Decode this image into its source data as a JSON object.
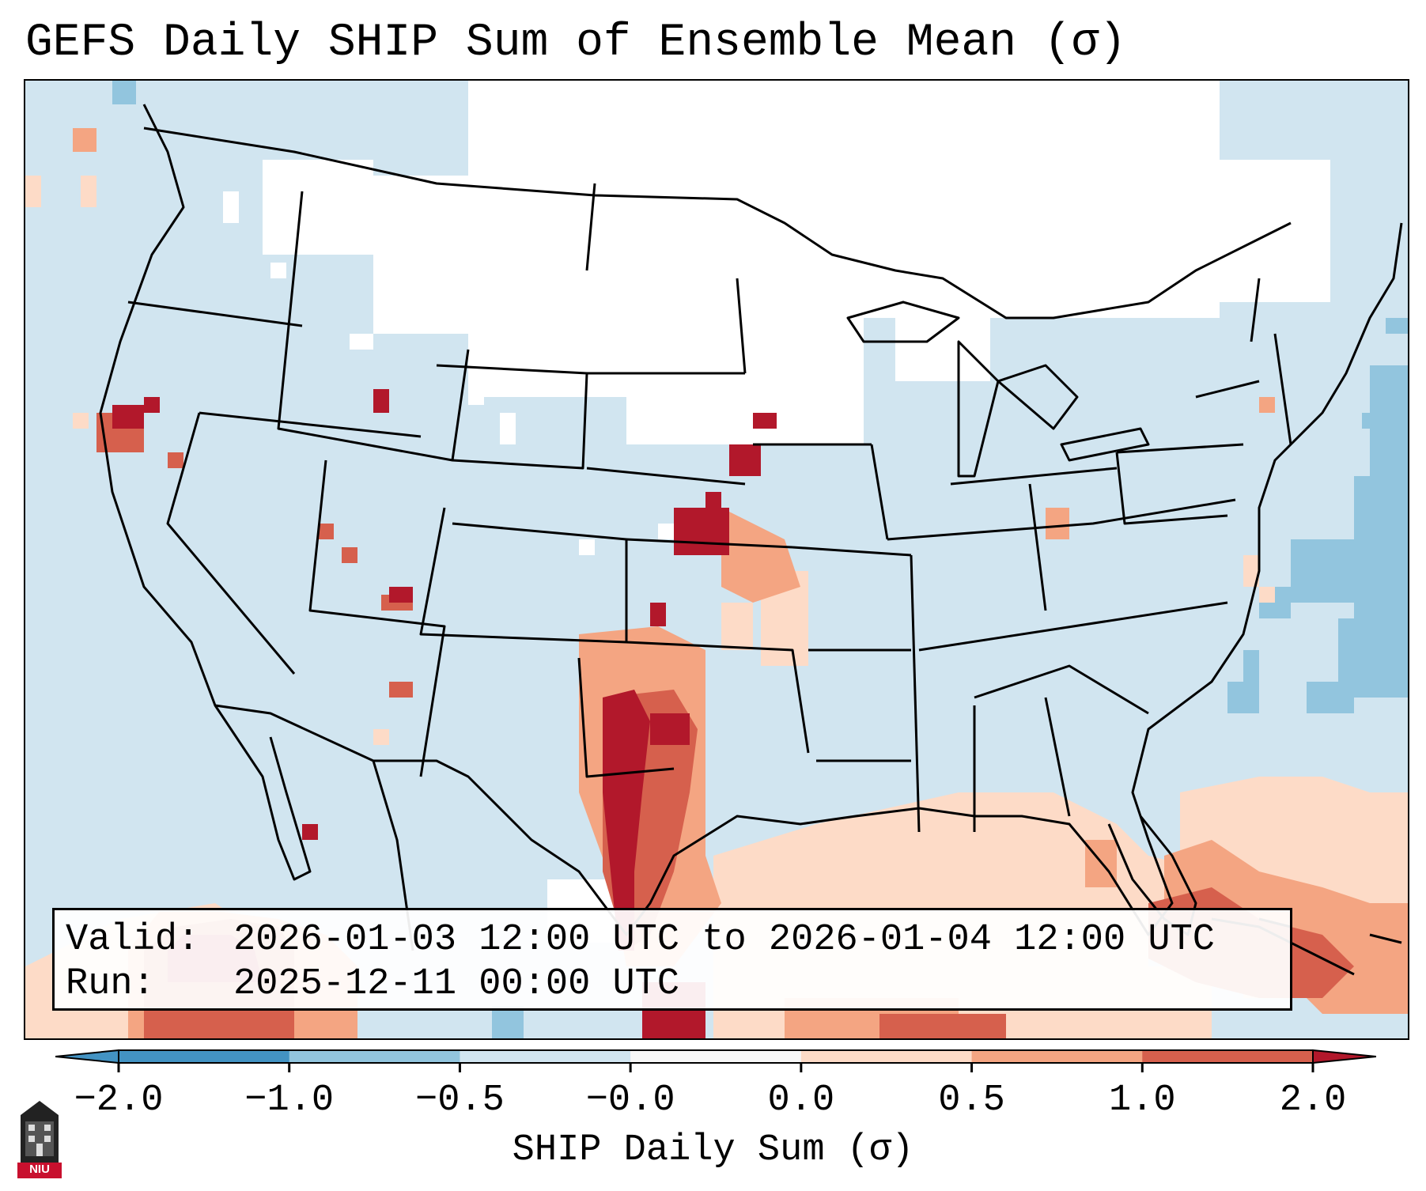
{
  "title": "GEFS Daily SHIP Sum of Ensemble Mean (σ)",
  "valid": {
    "valid_label": "Valid:",
    "valid_value": "2026-01-03 12:00 UTC to 2026-01-04 12:00 UTC",
    "run_label": "Run:",
    "run_value": "2025-12-11 00:00 UTC"
  },
  "colorbar": {
    "label": "SHIP Daily Sum (σ)",
    "ticks": [
      "−2.0",
      "−1.0",
      "−0.5",
      "−0.0",
      "0.0",
      "0.5",
      "1.0",
      "2.0"
    ],
    "bins": [
      {
        "color": "#4393c3",
        "range": "< -2.0"
      },
      {
        "color": "#4393c3",
        "range": "-2.0 to -1.0"
      },
      {
        "color": "#92c5de",
        "range": "-1.0 to -0.5"
      },
      {
        "color": "#d1e5f0",
        "range": "-0.5 to -0.0"
      },
      {
        "color": "#f7f7f7",
        "range": "-0.0 to 0.0"
      },
      {
        "color": "#fddbc7",
        "range": "0.0 to 0.5"
      },
      {
        "color": "#f4a582",
        "range": "0.5 to 1.0"
      },
      {
        "color": "#d6604d",
        "range": "1.0 to 2.0"
      },
      {
        "color": "#b2182b",
        "range": "> 2.0"
      }
    ]
  },
  "colors": {
    "below_neg_half": "#d1e5f0",
    "neutral": "#ffffff",
    "light_red": "#fddbc7",
    "mid_red": "#f4a582",
    "red": "#d6604d",
    "dark_red": "#b2182b",
    "blue": "#92c5de"
  },
  "logo": {
    "text": "NIU"
  }
}
